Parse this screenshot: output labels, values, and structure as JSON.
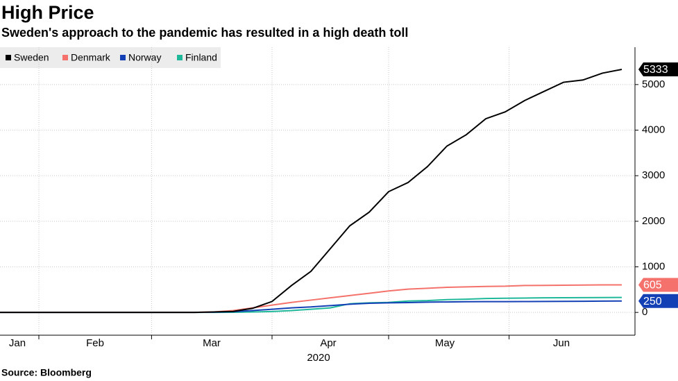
{
  "chart_data": {
    "type": "line",
    "title": "High Price",
    "subtitle": "Sweden's approach to the pandemic has resulted in a high death toll",
    "source": "Source: Bloomberg",
    "year_label": "2020",
    "categories": [
      null,
      "Jan",
      null,
      null,
      null,
      "Feb",
      null,
      null,
      null,
      null,
      null,
      "Mar",
      null,
      null,
      null,
      null,
      null,
      "Apr",
      null,
      null,
      null,
      null,
      null,
      "May",
      null,
      null,
      null,
      null,
      null,
      "Jun",
      null,
      null,
      null
    ],
    "series": [
      {
        "name": "Sweden",
        "color": "#000000",
        "end_label": true,
        "values": [
          0,
          0,
          0,
          0,
          0,
          0,
          0,
          0,
          0,
          0,
          1,
          10,
          21,
          90,
          240,
          590,
          900,
          1400,
          1900,
          2200,
          2650,
          2850,
          3200,
          3650,
          3900,
          4250,
          4400,
          4650,
          4850,
          5050,
          5100,
          5250,
          5333
        ]
      },
      {
        "name": "Denmark",
        "color": "#f4726b",
        "end_label": true,
        "values": [
          0,
          0,
          0,
          0,
          0,
          0,
          0,
          0,
          0,
          0,
          0,
          10,
          40,
          100,
          160,
          220,
          270,
          320,
          370,
          420,
          470,
          510,
          530,
          550,
          560,
          570,
          575,
          590,
          593,
          597,
          600,
          604,
          605
        ]
      },
      {
        "name": "Norway",
        "color": "#1340b5",
        "end_label": true,
        "values": [
          0,
          0,
          0,
          0,
          0,
          0,
          0,
          0,
          0,
          0,
          0,
          5,
          15,
          40,
          70,
          100,
          120,
          150,
          180,
          200,
          210,
          215,
          225,
          230,
          235,
          236,
          237,
          238,
          240,
          242,
          245,
          248,
          250
        ]
      },
      {
        "name": "Finland",
        "color": "#1fb89a",
        "end_label": false,
        "values": [
          0,
          0,
          0,
          0,
          0,
          0,
          0,
          0,
          0,
          0,
          0,
          0,
          3,
          10,
          20,
          40,
          70,
          100,
          190,
          210,
          220,
          250,
          260,
          280,
          290,
          305,
          310,
          315,
          320,
          322,
          325,
          326,
          328
        ]
      }
    ],
    "ylim": [
      -500,
      5820
    ],
    "yticks": [
      0,
      1000,
      2000,
      3000,
      4000,
      5000
    ],
    "grid": true
  }
}
